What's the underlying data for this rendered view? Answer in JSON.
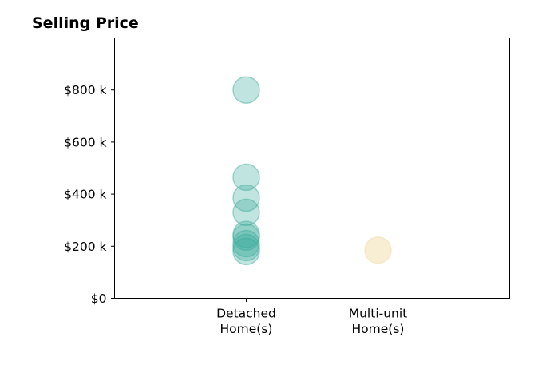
{
  "chart_data": {
    "type": "scatter",
    "title": "Selling Price",
    "xlabel": "",
    "ylabel": "",
    "categories": [
      [
        "Detached",
        "Home(s)"
      ],
      [
        "Multi-unit",
        "Home(s)"
      ]
    ],
    "x_range": [
      -1,
      2
    ],
    "ylim": [
      0,
      1000000
    ],
    "y_ticks": [
      0,
      200000,
      400000,
      600000,
      800000
    ],
    "y_tick_labels": [
      "$0",
      "$200 k",
      "$400 k",
      "$600 k",
      "$800 k"
    ],
    "grid": false,
    "legend": "none",
    "series": [
      {
        "category_index": 0,
        "color": "#3aaa9a",
        "values": [
          800000,
          465000,
          385000,
          330000,
          245000,
          235000,
          210000,
          195000,
          180000
        ]
      },
      {
        "category_index": 1,
        "color": "#f0d9a0",
        "values": [
          185000
        ]
      }
    ]
  }
}
